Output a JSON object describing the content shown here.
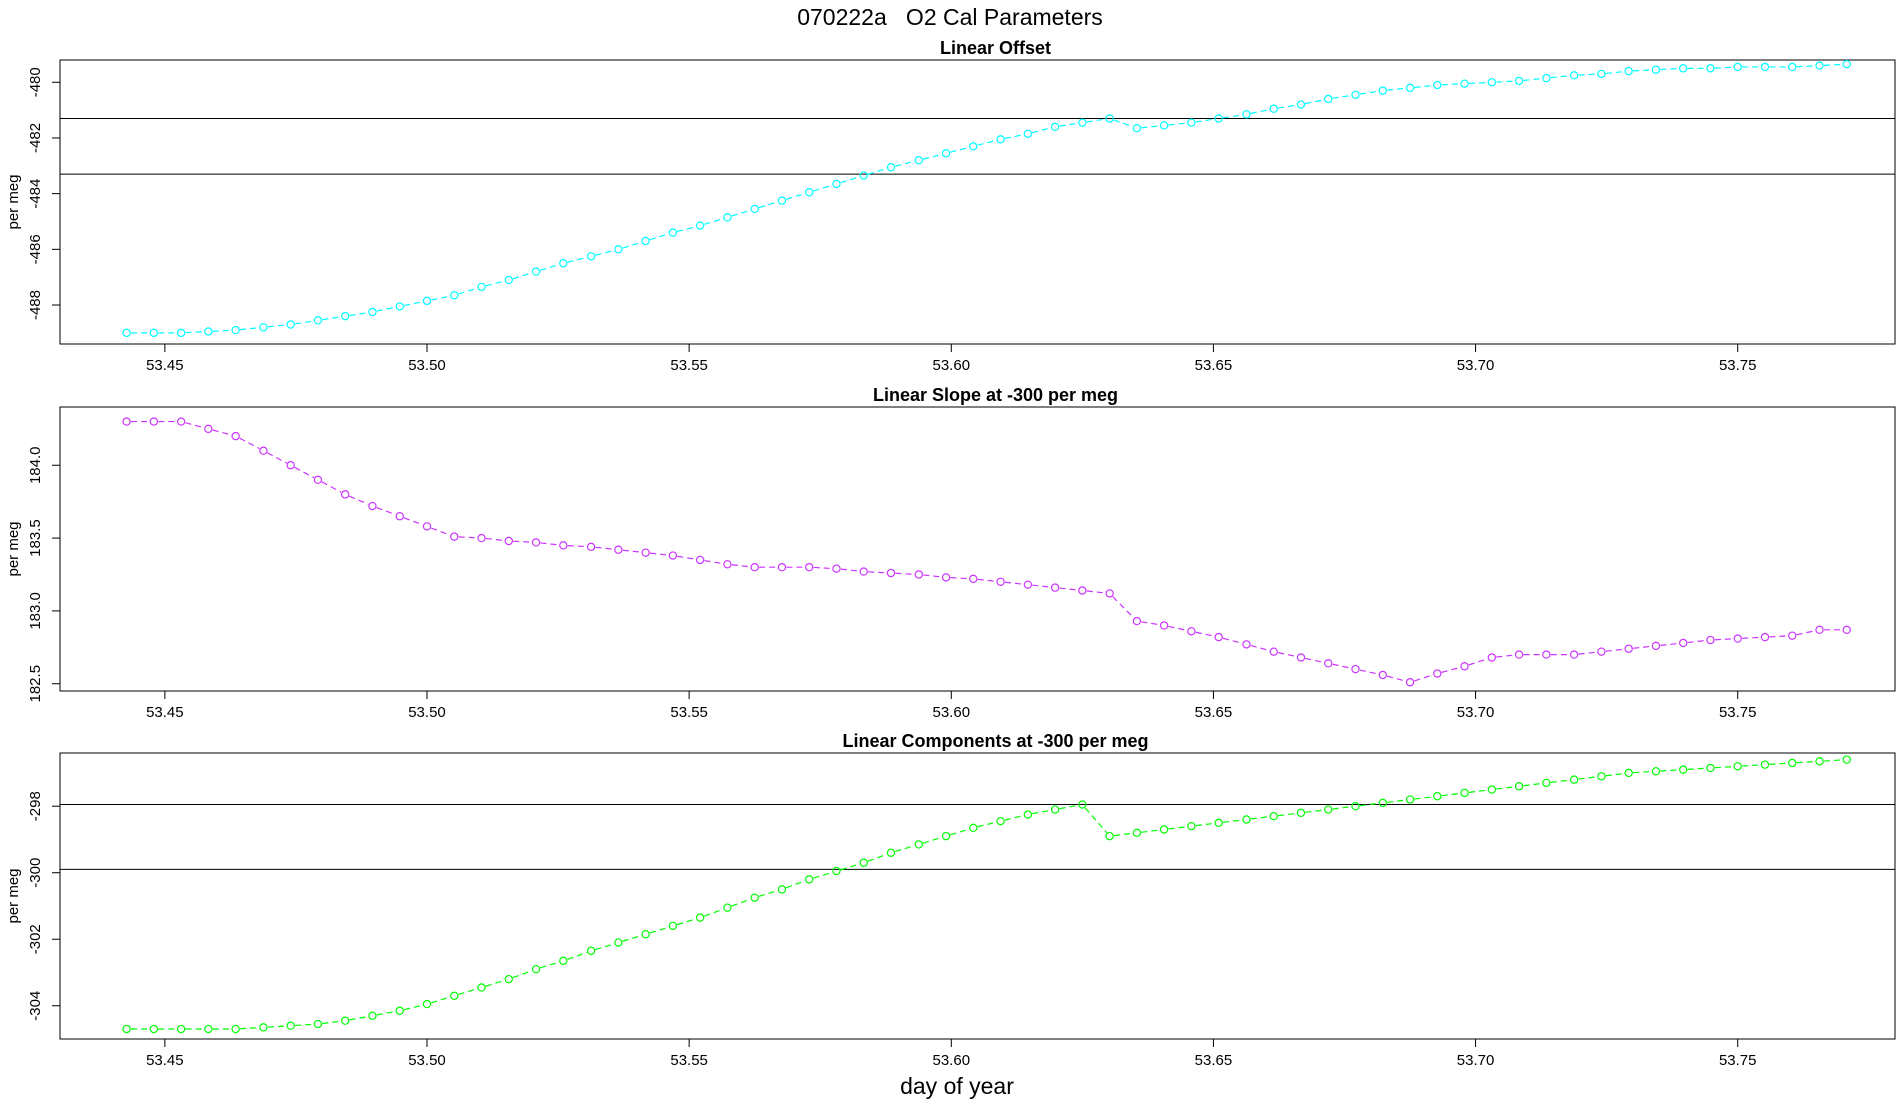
{
  "page": {
    "title": "070222a   O2 Cal Parameters",
    "xlabel": "day of year"
  },
  "chart_data": [
    {
      "type": "line",
      "title": "Linear Offset",
      "xlabel": "day of year",
      "ylabel": "per meg",
      "xlim": [
        53.43,
        53.78
      ],
      "ylim": [
        -489.4,
        -479.2
      ],
      "xticks": [
        "53.45",
        "53.50",
        "53.55",
        "53.60",
        "53.65",
        "53.70",
        "53.75"
      ],
      "yticks": [
        "-488",
        "-486",
        "-484",
        "-482",
        "-480"
      ],
      "hlines": [
        -481.3,
        -483.3
      ],
      "color": "#00ffff",
      "marker": "open-circle",
      "x": [
        53.4427,
        53.4479,
        53.4531,
        53.4583,
        53.4635,
        53.4688,
        53.474,
        53.4792,
        53.4844,
        53.4896,
        53.4948,
        53.5,
        53.5052,
        53.5104,
        53.5156,
        53.5208,
        53.526,
        53.5313,
        53.5365,
        53.5417,
        53.5469,
        53.5521,
        53.5573,
        53.5625,
        53.5677,
        53.5729,
        53.5781,
        53.5833,
        53.5885,
        53.5938,
        53.599,
        53.6042,
        53.6094,
        53.6146,
        53.6198,
        53.625,
        53.6302,
        53.6354,
        53.6406,
        53.6458,
        53.651,
        53.6563,
        53.6615,
        53.6667,
        53.6719,
        53.6771,
        53.6823,
        53.6875,
        53.6927,
        53.6979,
        53.7031,
        53.7083,
        53.7135,
        53.7188,
        53.724,
        53.7292,
        53.7344,
        53.7396,
        53.7448,
        53.75,
        53.7552,
        53.7604,
        53.7656,
        53.7708
      ],
      "y": [
        -489.0,
        -489.0,
        -489.0,
        -488.95,
        -488.9,
        -488.8,
        -488.7,
        -488.55,
        -488.4,
        -488.25,
        -488.05,
        -487.85,
        -487.65,
        -487.35,
        -487.1,
        -486.8,
        -486.5,
        -486.25,
        -486.0,
        -485.7,
        -485.4,
        -485.15,
        -484.85,
        -484.55,
        -484.25,
        -483.95,
        -483.65,
        -483.35,
        -483.05,
        -482.8,
        -482.55,
        -482.3,
        -482.05,
        -481.85,
        -481.6,
        -481.45,
        -481.3,
        -481.65,
        -481.55,
        -481.45,
        -481.3,
        -481.15,
        -480.95,
        -480.8,
        -480.6,
        -480.45,
        -480.3,
        -480.2,
        -480.1,
        -480.05,
        -480.0,
        -479.95,
        -479.85,
        -479.75,
        -479.7,
        -479.6,
        -479.55,
        -479.5,
        -479.5,
        -479.45,
        -479.45,
        -479.45,
        -479.4,
        -479.35
      ]
    },
    {
      "type": "line",
      "title": "Linear Slope at -300 per meg",
      "xlabel": "day of year",
      "ylabel": "per meg",
      "xlim": [
        53.43,
        53.78
      ],
      "ylim": [
        182.45,
        184.4
      ],
      "xticks": [
        "53.45",
        "53.50",
        "53.55",
        "53.60",
        "53.65",
        "53.70",
        "53.75"
      ],
      "yticks": [
        "182.5",
        "183.0",
        "183.5",
        "184.0"
      ],
      "hlines": [],
      "color": "#cc33ff",
      "marker": "open-circle",
      "x": [
        53.4427,
        53.4479,
        53.4531,
        53.4583,
        53.4635,
        53.4688,
        53.474,
        53.4792,
        53.4844,
        53.4896,
        53.4948,
        53.5,
        53.5052,
        53.5104,
        53.5156,
        53.5208,
        53.526,
        53.5313,
        53.5365,
        53.5417,
        53.5469,
        53.5521,
        53.5573,
        53.5625,
        53.5677,
        53.5729,
        53.5781,
        53.5833,
        53.5885,
        53.5938,
        53.599,
        53.6042,
        53.6094,
        53.6146,
        53.6198,
        53.625,
        53.6302,
        53.6354,
        53.6406,
        53.6458,
        53.651,
        53.6563,
        53.6615,
        53.6667,
        53.6719,
        53.6771,
        53.6823,
        53.6875,
        53.6927,
        53.6979,
        53.7031,
        53.7083,
        53.7135,
        53.7188,
        53.724,
        53.7292,
        53.7344,
        53.7396,
        53.7448,
        53.75,
        53.7552,
        53.7604,
        53.7656,
        53.7708
      ],
      "y": [
        184.3,
        184.3,
        184.3,
        184.25,
        184.2,
        184.1,
        184.0,
        183.9,
        183.8,
        183.72,
        183.65,
        183.58,
        183.51,
        183.5,
        183.48,
        183.47,
        183.45,
        183.44,
        183.42,
        183.4,
        183.38,
        183.35,
        183.32,
        183.3,
        183.3,
        183.3,
        183.29,
        183.27,
        183.26,
        183.25,
        183.23,
        183.22,
        183.2,
        183.18,
        183.16,
        183.14,
        183.12,
        182.93,
        182.9,
        182.86,
        182.82,
        182.77,
        182.72,
        182.68,
        182.64,
        182.6,
        182.56,
        182.51,
        182.57,
        182.62,
        182.68,
        182.7,
        182.7,
        182.7,
        182.72,
        182.74,
        182.76,
        182.78,
        182.8,
        182.81,
        182.82,
        182.83,
        182.87,
        182.87
      ]
    },
    {
      "type": "line",
      "title": "Linear Components at -300 per meg",
      "xlabel": "day of year",
      "ylabel": "per meg",
      "xlim": [
        53.43,
        53.78
      ],
      "ylim": [
        -305.0,
        -296.4
      ],
      "xticks": [
        "53.45",
        "53.50",
        "53.55",
        "53.60",
        "53.65",
        "53.70",
        "53.75"
      ],
      "yticks": [
        "-304",
        "-302",
        "-300",
        "-298"
      ],
      "hlines": [
        -297.95,
        -299.9
      ],
      "color": "#00ff00",
      "marker": "open-circle",
      "x": [
        53.4427,
        53.4479,
        53.4531,
        53.4583,
        53.4635,
        53.4688,
        53.474,
        53.4792,
        53.4844,
        53.4896,
        53.4948,
        53.5,
        53.5052,
        53.5104,
        53.5156,
        53.5208,
        53.526,
        53.5313,
        53.5365,
        53.5417,
        53.5469,
        53.5521,
        53.5573,
        53.5625,
        53.5677,
        53.5729,
        53.5781,
        53.5833,
        53.5885,
        53.5938,
        53.599,
        53.6042,
        53.6094,
        53.6146,
        53.6198,
        53.625,
        53.6302,
        53.6354,
        53.6406,
        53.6458,
        53.651,
        53.6563,
        53.6615,
        53.6667,
        53.6719,
        53.6771,
        53.6823,
        53.6875,
        53.6927,
        53.6979,
        53.7031,
        53.7083,
        53.7135,
        53.7188,
        53.724,
        53.7292,
        53.7344,
        53.7396,
        53.7448,
        53.75,
        53.7552,
        53.7604,
        53.7656,
        53.7708
      ],
      "y": [
        -304.7,
        -304.7,
        -304.7,
        -304.7,
        -304.7,
        -304.65,
        -304.6,
        -304.55,
        -304.45,
        -304.3,
        -304.15,
        -303.95,
        -303.7,
        -303.45,
        -303.2,
        -302.9,
        -302.65,
        -302.35,
        -302.1,
        -301.85,
        -301.6,
        -301.35,
        -301.05,
        -300.75,
        -300.5,
        -300.2,
        -299.95,
        -299.7,
        -299.4,
        -299.15,
        -298.9,
        -298.65,
        -298.45,
        -298.25,
        -298.1,
        -297.95,
        -298.9,
        -298.8,
        -298.7,
        -298.6,
        -298.5,
        -298.4,
        -298.3,
        -298.2,
        -298.1,
        -298.0,
        -297.9,
        -297.8,
        -297.7,
        -297.6,
        -297.5,
        -297.4,
        -297.3,
        -297.2,
        -297.1,
        -297.0,
        -296.95,
        -296.9,
        -296.85,
        -296.8,
        -296.75,
        -296.7,
        -296.65,
        -296.6
      ]
    }
  ]
}
